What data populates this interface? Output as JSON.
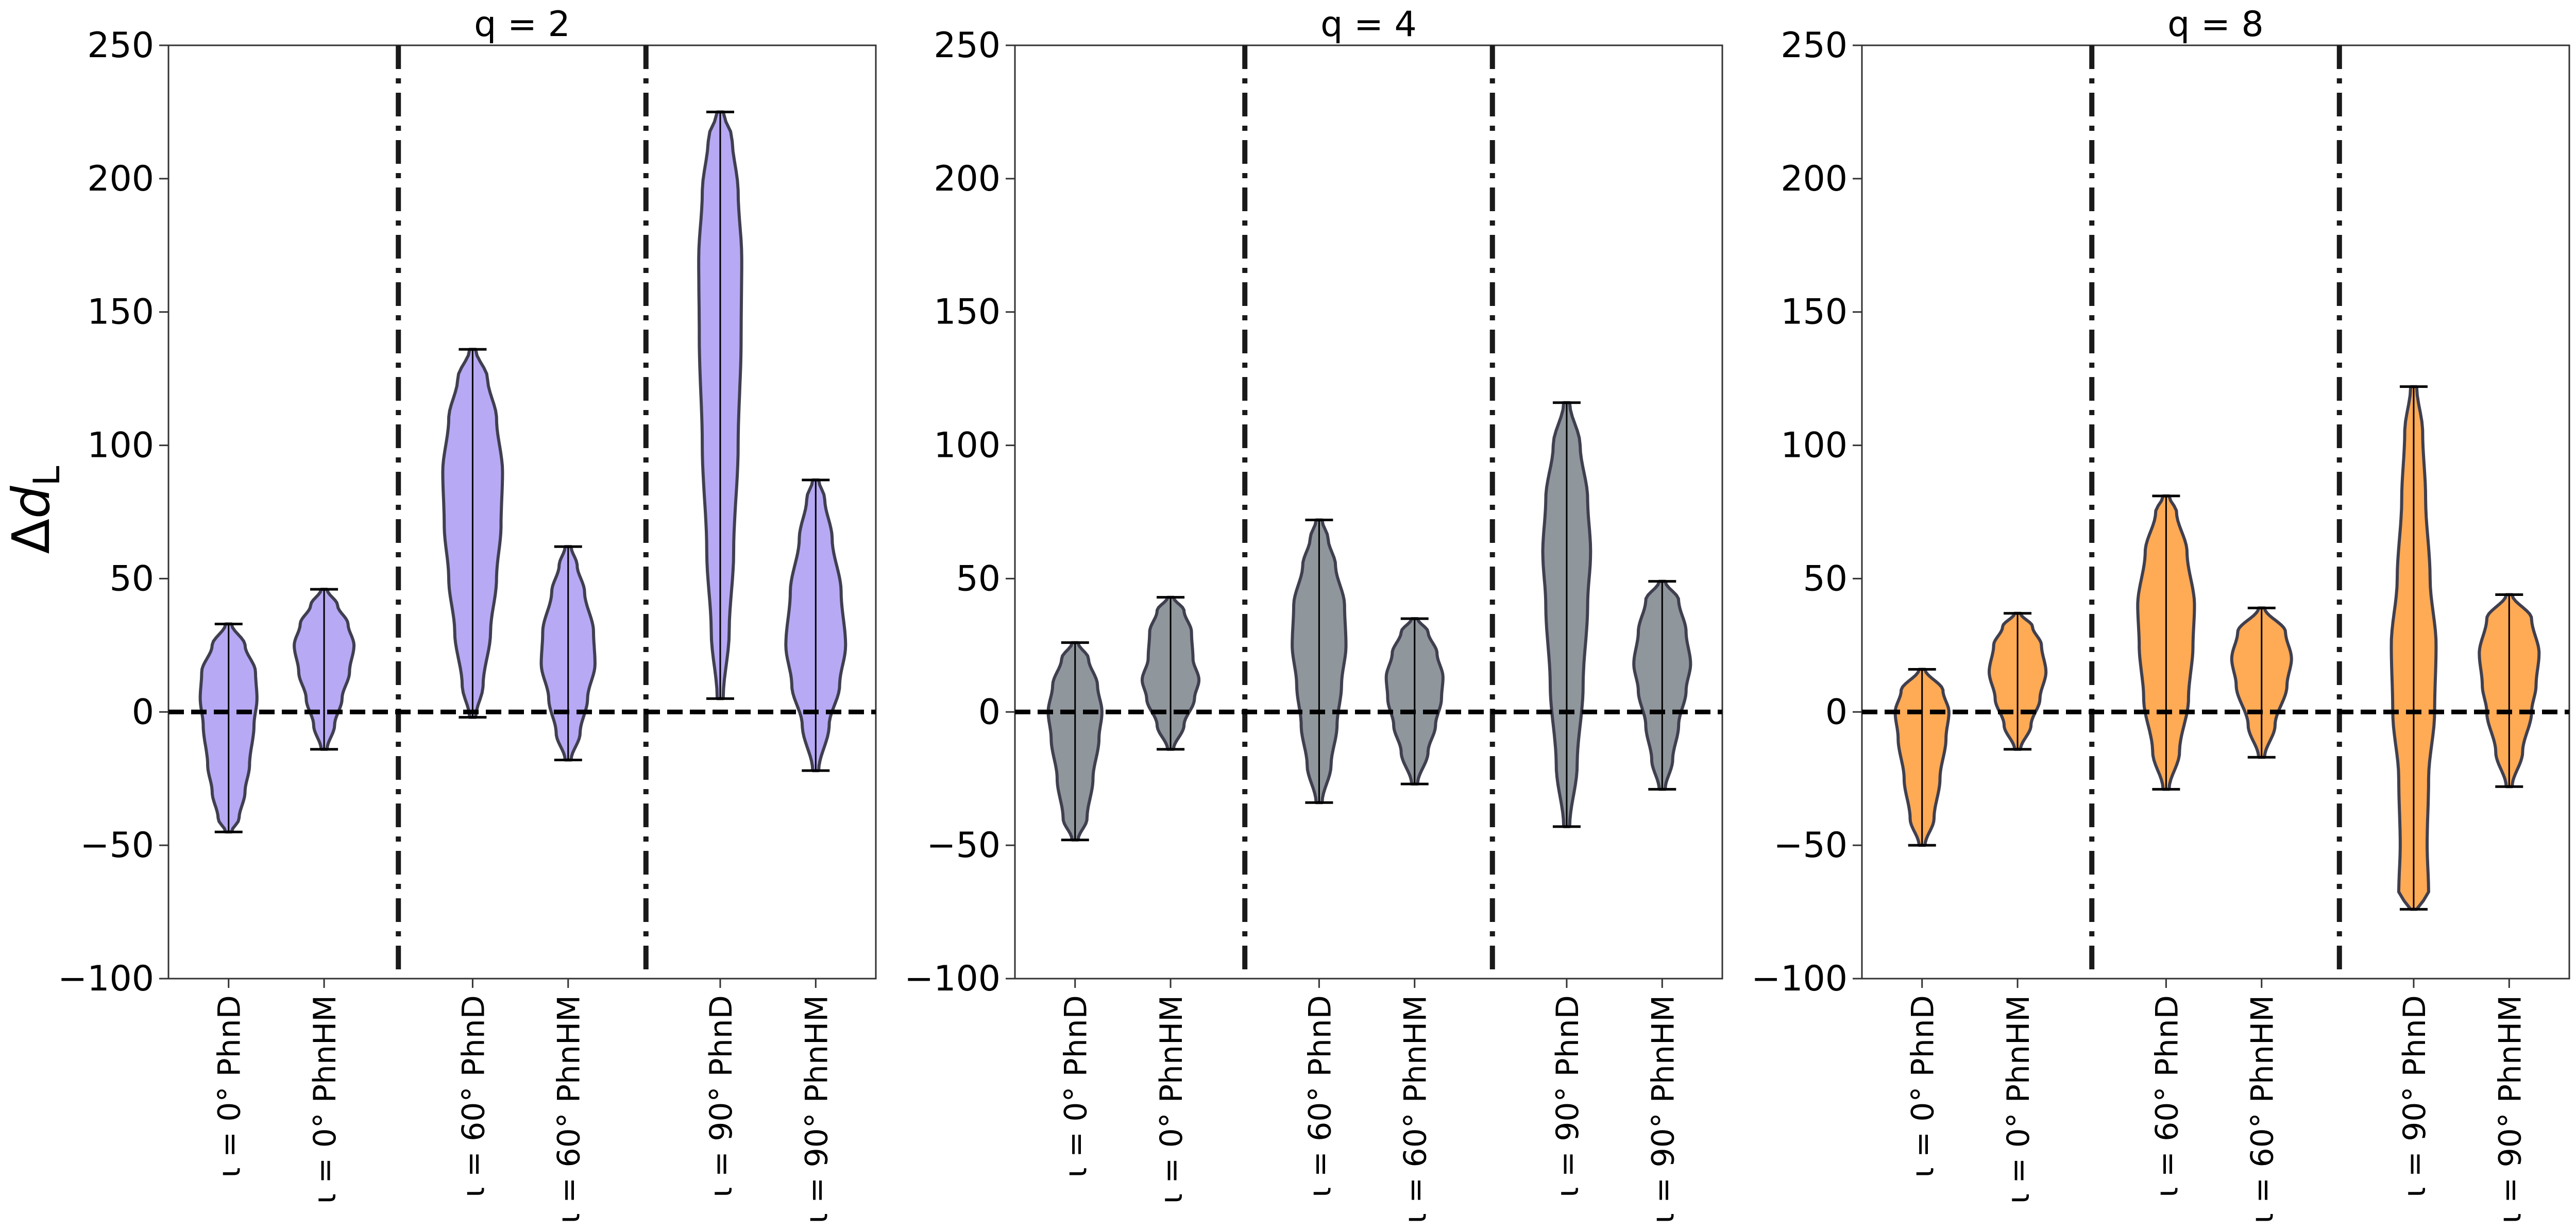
{
  "chart_data": {
    "type": "violin",
    "ylabel": "Δd_L",
    "ylim": [
      -100,
      250
    ],
    "yticks": [
      -100,
      -50,
      0,
      50,
      100,
      150,
      200,
      250
    ],
    "ytick_labels": [
      "−100",
      "−50",
      "0",
      "50",
      "100",
      "150",
      "200",
      "250"
    ],
    "categories": [
      "ι = 0° PhnD",
      "ι = 0° PhnHM",
      "ι = 60° PhnD",
      "ι = 60° PhnHM",
      "ι = 90° PhnD",
      "ι = 90° PhnHM"
    ],
    "reference_line_y": 0,
    "panels": [
      {
        "title": "q = 2",
        "color": "#b8a9f5",
        "violins": [
          {
            "min": -45,
            "max": 33,
            "profile": [
              [
                -45,
                0.1
              ],
              [
                -40,
                0.35
              ],
              [
                -30,
                0.55
              ],
              [
                -20,
                0.7
              ],
              [
                -5,
                0.85
              ],
              [
                5,
                0.95
              ],
              [
                15,
                0.9
              ],
              [
                25,
                0.55
              ],
              [
                33,
                0.1
              ]
            ]
          },
          {
            "min": -14,
            "max": 46,
            "profile": [
              [
                -14,
                0.1
              ],
              [
                -5,
                0.35
              ],
              [
                5,
                0.6
              ],
              [
                15,
                0.85
              ],
              [
                25,
                1.0
              ],
              [
                33,
                0.8
              ],
              [
                40,
                0.45
              ],
              [
                46,
                0.1
              ]
            ]
          },
          {
            "min": -2,
            "max": 136,
            "profile": [
              [
                -2,
                0.1
              ],
              [
                10,
                0.35
              ],
              [
                30,
                0.6
              ],
              [
                50,
                0.8
              ],
              [
                70,
                0.95
              ],
              [
                90,
                1.0
              ],
              [
                110,
                0.8
              ],
              [
                125,
                0.5
              ],
              [
                136,
                0.1
              ]
            ]
          },
          {
            "min": -18,
            "max": 62,
            "profile": [
              [
                -18,
                0.1
              ],
              [
                -8,
                0.4
              ],
              [
                5,
                0.65
              ],
              [
                18,
                0.9
              ],
              [
                30,
                0.85
              ],
              [
                45,
                0.55
              ],
              [
                55,
                0.3
              ],
              [
                62,
                0.1
              ]
            ]
          },
          {
            "min": 5,
            "max": 225,
            "profile": [
              [
                5,
                0.1
              ],
              [
                30,
                0.3
              ],
              [
                60,
                0.45
              ],
              [
                100,
                0.6
              ],
              [
                140,
                0.7
              ],
              [
                170,
                0.72
              ],
              [
                195,
                0.6
              ],
              [
                215,
                0.4
              ],
              [
                225,
                0.1
              ]
            ]
          },
          {
            "min": -22,
            "max": 87,
            "profile": [
              [
                -22,
                0.1
              ],
              [
                -5,
                0.45
              ],
              [
                10,
                0.8
              ],
              [
                25,
                1.0
              ],
              [
                45,
                0.85
              ],
              [
                65,
                0.55
              ],
              [
                80,
                0.3
              ],
              [
                87,
                0.1
              ]
            ]
          }
        ]
      },
      {
        "title": "q = 4",
        "color": "#8f969c",
        "violins": [
          {
            "min": -48,
            "max": 26,
            "profile": [
              [
                -48,
                0.1
              ],
              [
                -40,
                0.4
              ],
              [
                -25,
                0.6
              ],
              [
                -10,
                0.8
              ],
              [
                0,
                0.9
              ],
              [
                10,
                0.75
              ],
              [
                20,
                0.45
              ],
              [
                26,
                0.1
              ]
            ]
          },
          {
            "min": -14,
            "max": 43,
            "profile": [
              [
                -14,
                0.1
              ],
              [
                -5,
                0.45
              ],
              [
                5,
                0.8
              ],
              [
                12,
                0.95
              ],
              [
                20,
                0.75
              ],
              [
                30,
                0.7
              ],
              [
                38,
                0.45
              ],
              [
                43,
                0.1
              ]
            ]
          },
          {
            "min": -34,
            "max": 72,
            "profile": [
              [
                -34,
                0.1
              ],
              [
                -20,
                0.4
              ],
              [
                -5,
                0.6
              ],
              [
                10,
                0.75
              ],
              [
                25,
                0.9
              ],
              [
                40,
                0.85
              ],
              [
                55,
                0.55
              ],
              [
                65,
                0.3
              ],
              [
                72,
                0.1
              ]
            ]
          },
          {
            "min": -27,
            "max": 35,
            "profile": [
              [
                -27,
                0.1
              ],
              [
                -15,
                0.45
              ],
              [
                -5,
                0.7
              ],
              [
                5,
                0.9
              ],
              [
                13,
                0.95
              ],
              [
                22,
                0.75
              ],
              [
                30,
                0.45
              ],
              [
                35,
                0.1
              ]
            ]
          },
          {
            "min": -43,
            "max": 116,
            "profile": [
              [
                -43,
                0.1
              ],
              [
                -20,
                0.35
              ],
              [
                10,
                0.55
              ],
              [
                40,
                0.7
              ],
              [
                60,
                0.8
              ],
              [
                80,
                0.7
              ],
              [
                100,
                0.45
              ],
              [
                116,
                0.1
              ]
            ]
          },
          {
            "min": -29,
            "max": 49,
            "profile": [
              [
                -29,
                0.1
              ],
              [
                -18,
                0.35
              ],
              [
                -5,
                0.55
              ],
              [
                8,
                0.8
              ],
              [
                18,
                0.95
              ],
              [
                30,
                0.8
              ],
              [
                42,
                0.55
              ],
              [
                49,
                0.1
              ]
            ]
          }
        ]
      },
      {
        "title": "q = 8",
        "color": "#ffaa55",
        "violins": [
          {
            "min": -50,
            "max": 16,
            "profile": [
              [
                -50,
                0.1
              ],
              [
                -40,
                0.4
              ],
              [
                -25,
                0.6
              ],
              [
                -10,
                0.8
              ],
              [
                0,
                0.9
              ],
              [
                8,
                0.7
              ],
              [
                16,
                0.1
              ]
            ]
          },
          {
            "min": -14,
            "max": 37,
            "profile": [
              [
                -14,
                0.1
              ],
              [
                -5,
                0.45
              ],
              [
                5,
                0.75
              ],
              [
                15,
                0.95
              ],
              [
                25,
                0.8
              ],
              [
                32,
                0.5
              ],
              [
                37,
                0.1
              ]
            ]
          },
          {
            "min": -29,
            "max": 81,
            "profile": [
              [
                -29,
                0.1
              ],
              [
                -15,
                0.45
              ],
              [
                5,
                0.75
              ],
              [
                25,
                0.9
              ],
              [
                40,
                0.95
              ],
              [
                60,
                0.7
              ],
              [
                75,
                0.35
              ],
              [
                81,
                0.1
              ]
            ]
          },
          {
            "min": -17,
            "max": 39,
            "profile": [
              [
                -17,
                0.1
              ],
              [
                -5,
                0.45
              ],
              [
                10,
                0.85
              ],
              [
                20,
                1.0
              ],
              [
                30,
                0.8
              ],
              [
                39,
                0.1
              ]
            ]
          },
          {
            "min": -74,
            "max": 122,
            "profile": [
              [
                -74,
                0.1
              ],
              [
                -68,
                0.5
              ],
              [
                -50,
                0.45
              ],
              [
                -25,
                0.5
              ],
              [
                0,
                0.7
              ],
              [
                25,
                0.75
              ],
              [
                50,
                0.55
              ],
              [
                80,
                0.4
              ],
              [
                105,
                0.3
              ],
              [
                122,
                0.1
              ]
            ]
          },
          {
            "min": -28,
            "max": 44,
            "profile": [
              [
                -28,
                0.1
              ],
              [
                -15,
                0.45
              ],
              [
                0,
                0.75
              ],
              [
                10,
                0.9
              ],
              [
                22,
                1.0
              ],
              [
                35,
                0.75
              ],
              [
                44,
                0.1
              ]
            ]
          }
        ]
      }
    ]
  }
}
